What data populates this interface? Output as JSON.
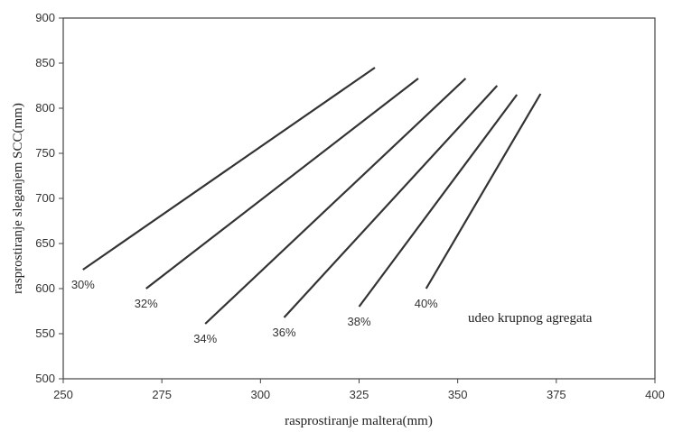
{
  "chart_data": {
    "type": "line",
    "title": "",
    "xlabel": "rasprostiranje maltera(mm)",
    "ylabel": "rasprostiranje sleganjem SCC(mm)",
    "xlim": [
      250,
      400
    ],
    "ylim": [
      500,
      900
    ],
    "xticks": [
      "250",
      "275",
      "300",
      "325",
      "350",
      "375",
      "400"
    ],
    "yticks": [
      "500",
      "550",
      "600",
      "650",
      "700",
      "750",
      "800",
      "850",
      "900"
    ],
    "grid": false,
    "annotation": "udeo krupnog agregata",
    "series": [
      {
        "name": "30%",
        "x": [
          255,
          329
        ],
        "y": [
          621,
          845
        ]
      },
      {
        "name": "32%",
        "x": [
          271,
          340
        ],
        "y": [
          600,
          833
        ]
      },
      {
        "name": "34%",
        "x": [
          286,
          352
        ],
        "y": [
          561,
          833
        ]
      },
      {
        "name": "36%",
        "x": [
          306,
          360
        ],
        "y": [
          568,
          825
        ]
      },
      {
        "name": "38%",
        "x": [
          325,
          365
        ],
        "y": [
          580,
          815
        ]
      },
      {
        "name": "40%",
        "x": [
          342,
          371
        ],
        "y": [
          600,
          816
        ]
      }
    ]
  }
}
